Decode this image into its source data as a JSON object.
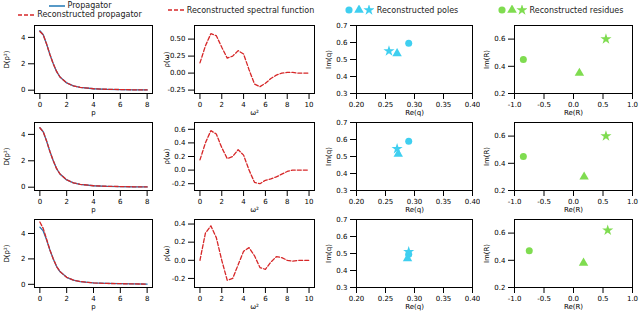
{
  "chart_data": [
    {
      "type": "line",
      "x_label": "p",
      "y_label": "D(p²)",
      "legend": "top",
      "x": [
        0,
        0.25,
        0.5,
        0.75,
        1,
        1.25,
        1.5,
        2,
        2.5,
        3,
        4,
        5,
        6,
        7,
        8
      ],
      "series": [
        {
          "name": "Propagator",
          "color": "#1f77b4",
          "line_style": "solid",
          "values": [
            4.5,
            4.2,
            3.5,
            2.7,
            2.0,
            1.4,
            1.0,
            0.55,
            0.33,
            0.22,
            0.11,
            0.07,
            0.05,
            0.03,
            0.02
          ]
        },
        {
          "name": "Reconstructed propagator",
          "color": "#d62728",
          "line_style": "dashed",
          "values": [
            4.45,
            4.2,
            3.5,
            2.7,
            2.0,
            1.42,
            1.0,
            0.55,
            0.33,
            0.22,
            0.11,
            0.07,
            0.05,
            0.03,
            0.02
          ]
        }
      ],
      "xlim": [
        -0.4,
        8.4
      ],
      "xticks": [
        0,
        2,
        4,
        6,
        8
      ],
      "ylim": [
        -0.25,
        4.9
      ],
      "yticks": [
        0,
        2,
        4
      ]
    },
    {
      "type": "line",
      "x_label": "ω²",
      "y_label": "ρ(ω)",
      "legend": "top",
      "x": [
        0,
        0.5,
        1,
        1.5,
        2,
        2.5,
        3,
        3.5,
        4,
        4.5,
        5,
        5.5,
        6,
        6.5,
        7,
        7.5,
        8,
        8.5,
        9,
        9.5,
        10
      ],
      "series": [
        {
          "name": "Reconstructed spectral function",
          "color": "#d62728",
          "line_style": "dashed",
          "values": [
            0.15,
            0.4,
            0.58,
            0.55,
            0.38,
            0.22,
            0.25,
            0.33,
            0.28,
            0.05,
            -0.16,
            -0.2,
            -0.15,
            -0.08,
            -0.03,
            0.0,
            0.01,
            0.01,
            0.0,
            0.0,
            0.0
          ]
        }
      ],
      "xlim": [
        -0.5,
        10.5
      ],
      "xticks": [
        0,
        2,
        4,
        6,
        8,
        10
      ],
      "ylim": [
        -0.3,
        0.7
      ],
      "yticks": [
        -0.25,
        {
          "value": 0,
          "label": "0.00"
        },
        0.25,
        {
          "value": 0.5,
          "label": "0.50"
        }
      ]
    },
    {
      "type": "scatter",
      "x_label": "Re(q)",
      "y_label": "Im(q)",
      "legend": "top",
      "series": [
        {
          "name": "Reconstructed poles",
          "color": "#3fcff0",
          "markers": [
            "circle",
            "triangle",
            "star"
          ],
          "x": [
            0.29,
            0.27,
            0.256
          ],
          "values": [
            0.595,
            0.535,
            0.55
          ]
        }
      ],
      "xlim": [
        0.2,
        0.4
      ],
      "xticks": [
        {
          "value": 0.2,
          "label": "0.20"
        },
        0.25,
        {
          "value": 0.3,
          "label": "0.30"
        },
        0.35,
        {
          "value": 0.4,
          "label": "0.40"
        }
      ],
      "ylim": [
        0.3,
        0.7
      ],
      "yticks": [
        0.3,
        0.4,
        0.5,
        0.6,
        0.7
      ]
    },
    {
      "type": "scatter",
      "x_label": "Re(R)",
      "y_label": "Im(R)",
      "legend": "top",
      "series": [
        {
          "name": "Reconstructed residues",
          "color": "#7fdc50",
          "markers": [
            "circle",
            "triangle",
            "star"
          ],
          "x": [
            -0.85,
            0.1,
            0.55
          ],
          "values": [
            0.45,
            0.35,
            0.6
          ]
        }
      ],
      "xlim": [
        -1.0,
        1.0
      ],
      "xticks": [
        {
          "value": -1,
          "label": "-1.0"
        },
        -0.5,
        {
          "value": 0,
          "label": "0.0"
        },
        0.5,
        {
          "value": 1,
          "label": "1.0"
        }
      ],
      "ylim": [
        0.2,
        0.7
      ],
      "yticks": [
        0.2,
        0.4,
        0.6
      ]
    },
    {
      "type": "line",
      "x_label": "p",
      "y_label": "D(p²)",
      "x": [
        0,
        0.25,
        0.5,
        0.75,
        1,
        1.25,
        1.5,
        2,
        2.5,
        3,
        4,
        5,
        6,
        7,
        8
      ],
      "series": [
        {
          "color": "#1f77b4",
          "line_style": "solid",
          "values": [
            4.5,
            4.2,
            3.5,
            2.7,
            2.0,
            1.4,
            1.0,
            0.55,
            0.33,
            0.22,
            0.11,
            0.07,
            0.05,
            0.03,
            0.02
          ]
        },
        {
          "color": "#d62728",
          "line_style": "dashed",
          "values": [
            4.5,
            4.2,
            3.5,
            2.7,
            2.0,
            1.4,
            1.0,
            0.56,
            0.33,
            0.22,
            0.11,
            0.07,
            0.05,
            0.03,
            0.02
          ]
        }
      ],
      "xlim": [
        -0.4,
        8.4
      ],
      "xticks": [
        0,
        2,
        4,
        6,
        8
      ],
      "ylim": [
        -0.25,
        4.9
      ],
      "yticks": [
        0,
        2,
        4
      ]
    },
    {
      "type": "line",
      "x_label": "ω²",
      "y_label": "ρ(ω)",
      "x": [
        0,
        0.5,
        1,
        1.5,
        2,
        2.5,
        3,
        3.5,
        4,
        4.5,
        5,
        5.5,
        6,
        6.5,
        7,
        7.5,
        8,
        8.5,
        9,
        9.5,
        10
      ],
      "series": [
        {
          "color": "#d62728",
          "line_style": "dashed",
          "values": [
            0.15,
            0.4,
            0.58,
            0.53,
            0.33,
            0.17,
            0.2,
            0.3,
            0.22,
            0.0,
            -0.18,
            -0.2,
            -0.15,
            -0.13,
            -0.1,
            -0.06,
            -0.02,
            0.0,
            0.0,
            0.0,
            0.0
          ]
        }
      ],
      "xlim": [
        -0.5,
        10.5
      ],
      "xticks": [
        0,
        2,
        4,
        6,
        8,
        10
      ],
      "ylim": [
        -0.3,
        0.7
      ],
      "yticks": [
        -0.2,
        {
          "value": 0,
          "label": "0.0"
        },
        0.2,
        0.4,
        0.6
      ]
    },
    {
      "type": "scatter",
      "x_label": "Re(q)",
      "y_label": "Im(q)",
      "series": [
        {
          "color": "#3fcff0",
          "markers": [
            "circle",
            "triangle",
            "star"
          ],
          "x": [
            0.29,
            0.272,
            0.27
          ],
          "values": [
            0.59,
            0.515,
            0.545
          ]
        }
      ],
      "xlim": [
        0.2,
        0.4
      ],
      "xticks": [
        {
          "value": 0.2,
          "label": "0.20"
        },
        0.25,
        {
          "value": 0.3,
          "label": "0.30"
        },
        0.35,
        {
          "value": 0.4,
          "label": "0.40"
        }
      ],
      "ylim": [
        0.3,
        0.7
      ],
      "yticks": [
        0.3,
        0.4,
        0.5,
        0.6,
        0.7
      ]
    },
    {
      "type": "scatter",
      "x_label": "Re(R)",
      "y_label": "Im(R)",
      "series": [
        {
          "color": "#7fdc50",
          "markers": [
            "circle",
            "triangle",
            "star"
          ],
          "x": [
            -0.85,
            0.18,
            0.55
          ],
          "values": [
            0.45,
            0.3,
            0.6
          ]
        }
      ],
      "xlim": [
        -1.0,
        1.0
      ],
      "xticks": [
        {
          "value": -1,
          "label": "-1.0"
        },
        -0.5,
        {
          "value": 0,
          "label": "0.0"
        },
        0.5,
        {
          "value": 1,
          "label": "1.0"
        }
      ],
      "ylim": [
        0.2,
        0.7
      ],
      "yticks": [
        0.2,
        0.4,
        0.6
      ]
    },
    {
      "type": "line",
      "x_label": "p",
      "y_label": "D(p²)",
      "x": [
        0,
        0.25,
        0.5,
        0.75,
        1,
        1.25,
        1.5,
        2,
        2.5,
        3,
        4,
        5,
        6,
        7,
        8
      ],
      "series": [
        {
          "color": "#1f77b4",
          "line_style": "solid",
          "values": [
            4.5,
            4.2,
            3.5,
            2.7,
            2.0,
            1.4,
            1.0,
            0.55,
            0.33,
            0.22,
            0.11,
            0.07,
            0.05,
            0.03,
            0.02
          ]
        },
        {
          "color": "#d62728",
          "line_style": "dashed",
          "values": [
            4.9,
            4.4,
            3.55,
            2.7,
            2.0,
            1.4,
            1.0,
            0.55,
            0.33,
            0.22,
            0.11,
            0.07,
            0.05,
            0.03,
            0.02
          ]
        }
      ],
      "xlim": [
        -0.4,
        8.4
      ],
      "xticks": [
        0,
        2,
        4,
        6,
        8
      ],
      "ylim": [
        -0.25,
        5.1
      ],
      "yticks": [
        0,
        2,
        4
      ]
    },
    {
      "type": "line",
      "x_label": "ω²",
      "y_label": "ρ(ω)",
      "x": [
        0,
        0.5,
        1,
        1.5,
        2,
        2.5,
        3,
        3.5,
        4,
        4.5,
        5,
        5.5,
        6,
        6.5,
        7,
        7.5,
        8,
        8.5,
        9,
        9.5,
        10
      ],
      "series": [
        {
          "color": "#d62728",
          "line_style": "dashed",
          "values": [
            0.0,
            0.3,
            0.38,
            0.25,
            0.0,
            -0.22,
            -0.2,
            -0.05,
            0.1,
            0.14,
            0.05,
            -0.08,
            -0.1,
            -0.02,
            0.04,
            0.03,
            0.0,
            -0.01,
            0.0,
            0.0,
            0.0
          ]
        }
      ],
      "xlim": [
        -0.5,
        10.5
      ],
      "xticks": [
        0,
        2,
        4,
        6,
        8,
        10
      ],
      "ylim": [
        -0.3,
        0.45
      ],
      "yticks": [
        -0.2,
        {
          "value": 0,
          "label": "0.0"
        },
        0.2,
        0.4
      ]
    },
    {
      "type": "scatter",
      "x_label": "Re(q)",
      "y_label": "Im(q)",
      "series": [
        {
          "color": "#3fcff0",
          "markers": [
            "circle",
            "triangle",
            "star"
          ],
          "x": [
            0.29,
            0.288,
            0.29
          ],
          "values": [
            0.495,
            0.47,
            0.51
          ]
        }
      ],
      "xlim": [
        0.2,
        0.4
      ],
      "xticks": [
        {
          "value": 0.2,
          "label": "0.20"
        },
        0.25,
        {
          "value": 0.3,
          "label": "0.30"
        },
        0.35,
        {
          "value": 0.4,
          "label": "0.40"
        }
      ],
      "ylim": [
        0.3,
        0.7
      ],
      "yticks": [
        0.3,
        0.4,
        0.5,
        0.6,
        0.7
      ]
    },
    {
      "type": "scatter",
      "x_label": "Re(R)",
      "y_label": "Im(R)",
      "series": [
        {
          "color": "#7fdc50",
          "markers": [
            "circle",
            "triangle",
            "star"
          ],
          "x": [
            -0.75,
            0.17,
            0.58
          ],
          "values": [
            0.47,
            0.38,
            0.62
          ]
        }
      ],
      "xlim": [
        -1.0,
        1.0
      ],
      "xticks": [
        {
          "value": -1,
          "label": "-1.0"
        },
        -0.5,
        {
          "value": 0,
          "label": "0.0"
        },
        0.5,
        {
          "value": 1,
          "label": "1.0"
        }
      ],
      "ylim": [
        0.2,
        0.7
      ],
      "yticks": [
        0.2,
        0.4,
        0.6
      ]
    }
  ]
}
